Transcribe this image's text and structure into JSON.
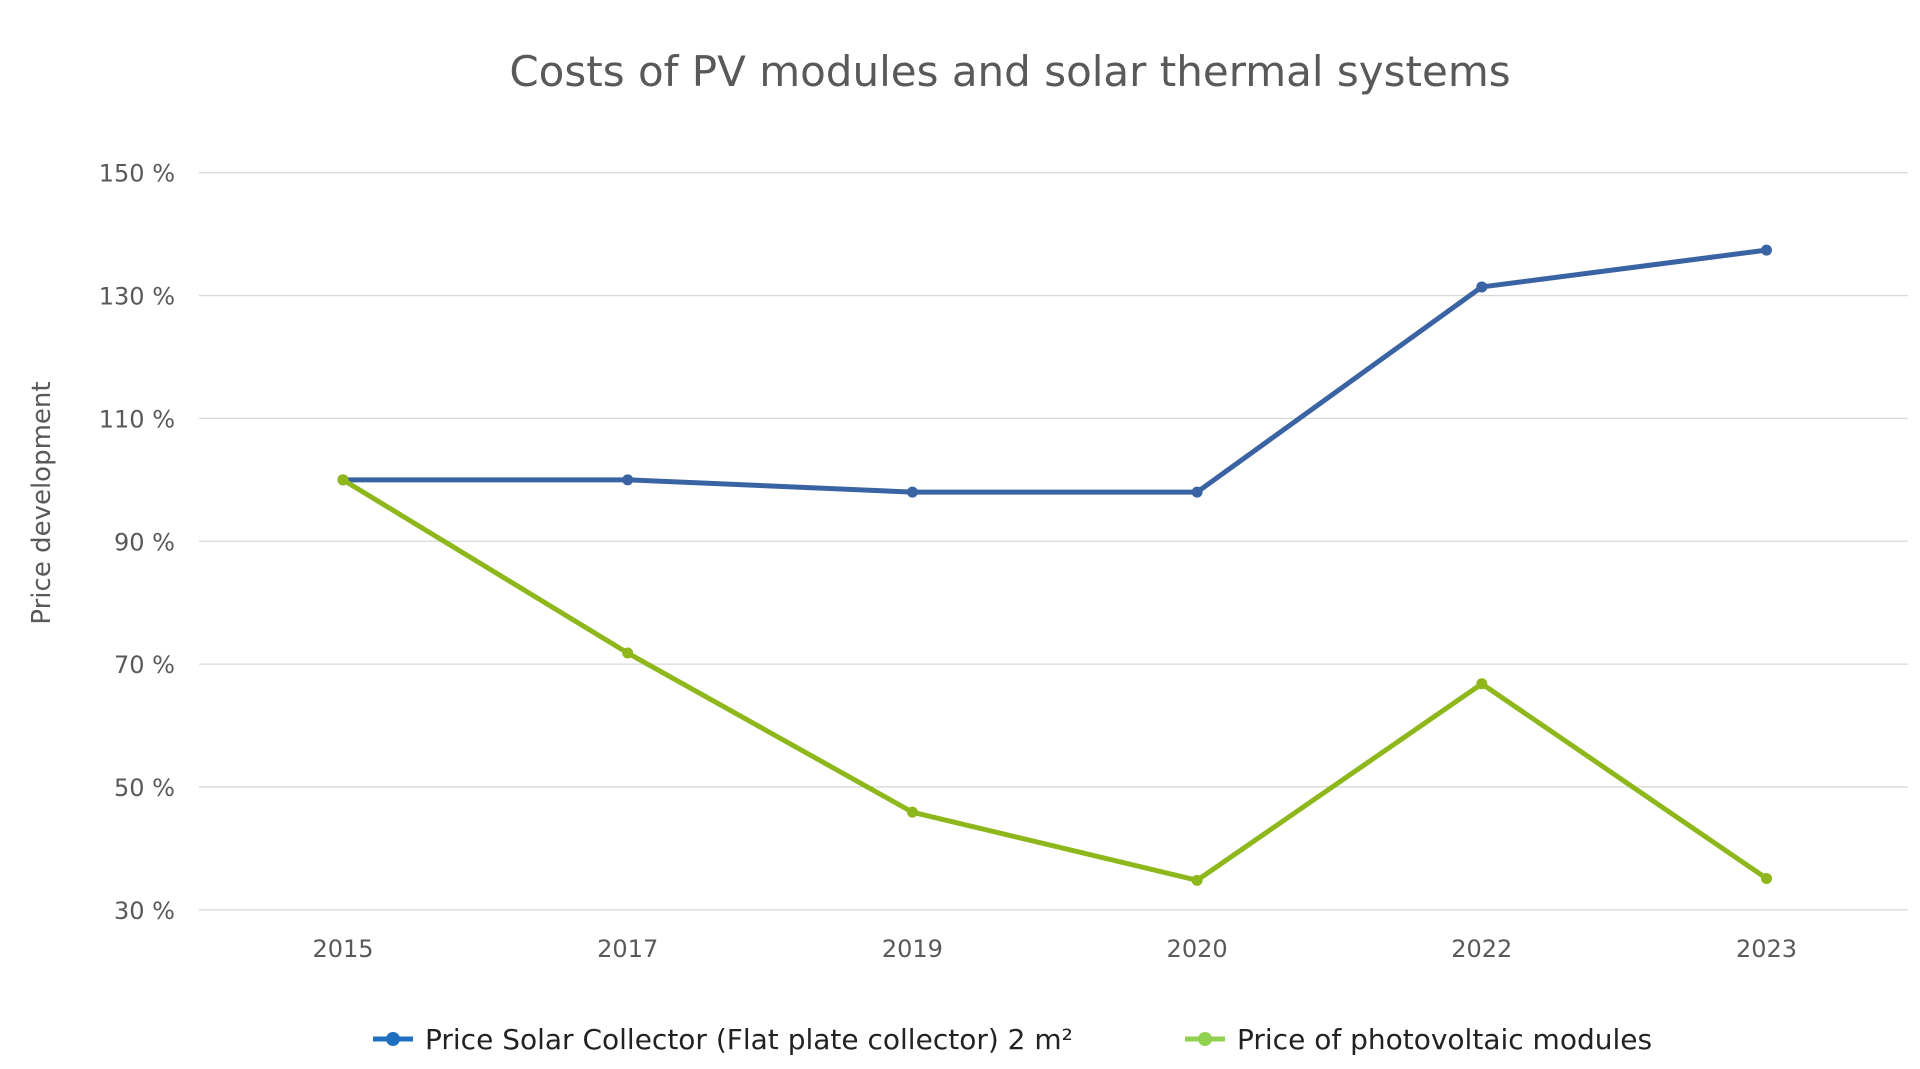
{
  "chart_data": {
    "type": "line",
    "title": "Costs of PV modules and solar thermal systems",
    "xlabel": "",
    "ylabel": "Price development",
    "categories": [
      "2015",
      "2017",
      "2019",
      "2020",
      "2022",
      "2023"
    ],
    "ylim": [
      30,
      150
    ],
    "yticks": [
      30,
      50,
      70,
      90,
      110,
      130,
      150
    ],
    "ytick_labels": [
      "30 %",
      "50 %",
      "70 %",
      "90 %",
      "110 %",
      "130 %",
      "150 %"
    ],
    "grid": true,
    "legend_position": "bottom",
    "series": [
      {
        "name": "Price Solar Collector (Flat plate collector) 2 m²",
        "color": "#3A63A3",
        "legend_color": "#1F6FC0",
        "values": [
          100,
          100,
          98,
          98,
          131.4,
          137.4
        ]
      },
      {
        "name": "Price of photovoltaic modules",
        "color": "#8DB71B",
        "legend_color": "#92D050",
        "values": [
          100,
          71.8,
          45.9,
          34.8,
          66.8,
          35.1
        ]
      }
    ]
  }
}
